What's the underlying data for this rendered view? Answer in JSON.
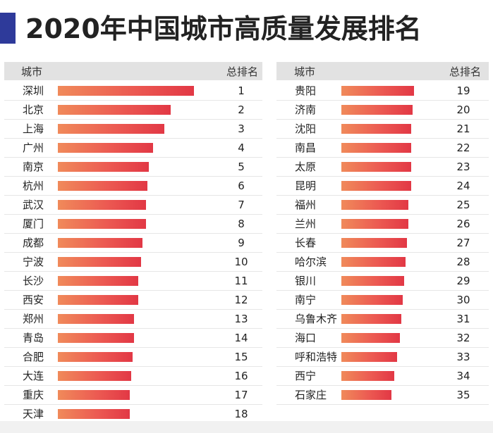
{
  "title": "2020年中国城市高质量发展排名",
  "colors": {
    "accent": "#2e3a9a",
    "bar_start": "#f08a5a",
    "bar_end": "#e23845",
    "header_bg": "#e2e2e2"
  },
  "headers": {
    "city": "城市",
    "rank": "总排名"
  },
  "chart_data": {
    "type": "bar",
    "orientation": "horizontal",
    "title": "2020年中国城市高质量发展排名",
    "columns": [
      "城市",
      "总排名"
    ],
    "value_scale": "relative (no axis shown)",
    "tables": [
      {
        "categories": [
          "深圳",
          "北京",
          "上海",
          "广州",
          "南京",
          "杭州",
          "武汉",
          "厦门",
          "成都",
          "宁波",
          "长沙",
          "西安",
          "郑州",
          "青岛",
          "合肥",
          "大连",
          "重庆",
          "天津"
        ],
        "ranks": [
          1,
          2,
          3,
          4,
          5,
          6,
          7,
          8,
          9,
          10,
          11,
          12,
          13,
          14,
          15,
          16,
          17,
          18
        ],
        "values": [
          100,
          83,
          78,
          70,
          67,
          66,
          65,
          65,
          62,
          61,
          59,
          59,
          56,
          56,
          55,
          54,
          53,
          53
        ]
      },
      {
        "categories": [
          "贵阳",
          "济南",
          "沈阳",
          "南昌",
          "太原",
          "昆明",
          "福州",
          "兰州",
          "长春",
          "哈尔滨",
          "银川",
          "南宁",
          "乌鲁木齐",
          "海口",
          "呼和浩特",
          "西宁",
          "石家庄"
        ],
        "ranks": [
          19,
          20,
          21,
          22,
          23,
          24,
          25,
          26,
          27,
          28,
          29,
          30,
          31,
          32,
          33,
          34,
          35
        ],
        "values": [
          51,
          50,
          49,
          49,
          49,
          49,
          47,
          47,
          46,
          45,
          44,
          43,
          42,
          41,
          39,
          37,
          35
        ]
      }
    ]
  }
}
